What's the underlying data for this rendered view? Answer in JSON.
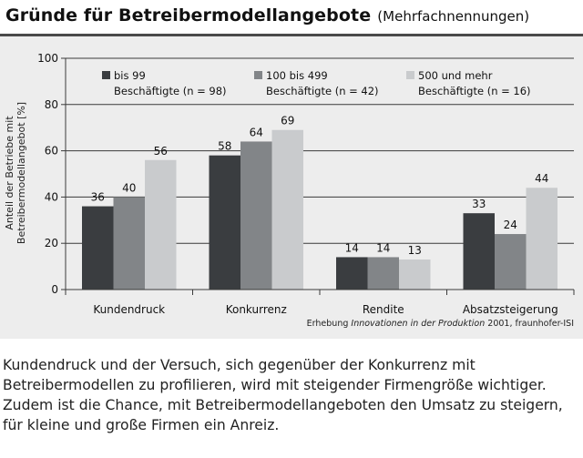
{
  "header": {
    "title": "Gründe für Betreibermodellangebote",
    "subtitle": "(Mehrfachnennungen)"
  },
  "chart_data": {
    "type": "bar",
    "categories": [
      "Kundendruck",
      "Konkurrenz",
      "Rendite",
      "Absatzsteigerung"
    ],
    "series": [
      {
        "name": "bis 99 Beschäftigte (n = 98)",
        "legend_line1": "bis 99",
        "legend_line2": "Beschäftigte (n = 98)",
        "color": "#3a3d40",
        "values": [
          36,
          58,
          14,
          33
        ]
      },
      {
        "name": "100 bis 499 Beschäftigte (n = 42)",
        "legend_line1": "100 bis 499",
        "legend_line2": "Beschäftigte (n = 42)",
        "color": "#828588",
        "values": [
          40,
          64,
          14,
          24
        ]
      },
      {
        "name": "500 und mehr Beschäftigte (n = 16)",
        "legend_line1": "500 und mehr",
        "legend_line2": "Beschäftigte (n = 16)",
        "color": "#c9cbcd",
        "values": [
          56,
          69,
          13,
          44
        ]
      }
    ],
    "ylabel_line1": "Anteil der Betriebe mit",
    "ylabel_line2": "Betreibermodellangebot [%]",
    "ylim": [
      0,
      100
    ],
    "yticks": [
      0,
      20,
      40,
      60,
      80,
      100
    ],
    "grid": true,
    "legend_position": "top"
  },
  "source": {
    "prefix": "Erhebung ",
    "italic": "Innovationen in der Produktion",
    "suffix": " 2001, fraunhofer-ISI"
  },
  "caption": "Kundendruck und der Versuch, sich gegenüber der Konkurrenz mit Betreibermodellen zu profilieren, wird mit steigender Firmengröße wichtiger. Zudem ist die Chance, mit Betreibermodellangeboten den Umsatz zu steigern, für kleine und große Firmen ein Anreiz."
}
